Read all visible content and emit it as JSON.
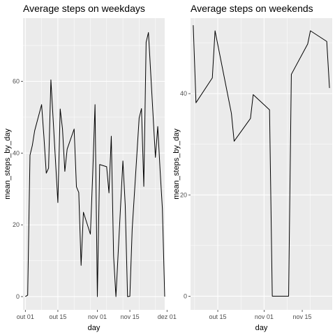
{
  "chart_data": [
    {
      "type": "line",
      "title": "Average steps on weekdays",
      "xlabel": "day",
      "ylabel": "mean_steps_by_day",
      "xlim": [
        "2012-09-30",
        "2012-11-30"
      ],
      "ylim": [
        -3.7,
        77.6
      ],
      "x_ticks": [
        {
          "value": "2012-10-01",
          "label": "out 01"
        },
        {
          "value": "2012-10-15",
          "label": "out 15"
        },
        {
          "value": "2012-11-01",
          "label": "nov 01"
        },
        {
          "value": "2012-11-15",
          "label": "nov 15"
        },
        {
          "value": "2012-12-01",
          "label": "dez 01"
        }
      ],
      "y_ticks": [
        0,
        20,
        40,
        60
      ],
      "grid": true,
      "x": [
        "2012-10-01",
        "2012-10-02",
        "2012-10-03",
        "2012-10-04",
        "2012-10-05",
        "2012-10-08",
        "2012-10-09",
        "2012-10-10",
        "2012-10-11",
        "2012-10-12",
        "2012-10-15",
        "2012-10-16",
        "2012-10-17",
        "2012-10-18",
        "2012-10-19",
        "2012-10-22",
        "2012-10-23",
        "2012-10-24",
        "2012-10-25",
        "2012-10-26",
        "2012-10-29",
        "2012-10-30",
        "2012-10-31",
        "2012-11-01",
        "2012-11-02",
        "2012-11-05",
        "2012-11-06",
        "2012-11-07",
        "2012-11-08",
        "2012-11-09",
        "2012-11-12",
        "2012-11-13",
        "2012-11-14",
        "2012-11-15",
        "2012-11-16",
        "2012-11-19",
        "2012-11-20",
        "2012-11-21",
        "2012-11-22",
        "2012-11-23",
        "2012-11-26",
        "2012-11-27",
        "2012-11-28",
        "2012-11-29",
        "2012-11-30"
      ],
      "series": [
        {
          "values": [
            0,
            0.4,
            39.4,
            42.1,
            46.2,
            53.5,
            44.5,
            34.4,
            35.8,
            60.4,
            26.2,
            52.3,
            46.7,
            34.9,
            41.1,
            46.7,
            30.6,
            29.0,
            8.7,
            23.5,
            17.4,
            34.1,
            53.5,
            0,
            36.8,
            36.2,
            28.9,
            44.7,
            11.2,
            0,
            37.8,
            25.5,
            0,
            0.1,
            18.8,
            49.8,
            52.4,
            30.7,
            70.9,
            73.6,
            38.8,
            47.4,
            35.4,
            24.5,
            0
          ]
        }
      ]
    },
    {
      "type": "line",
      "title": "Average steps on weekends",
      "xlabel": "day",
      "ylabel": "mean_steps_by_day",
      "xlim": [
        "2012-10-05",
        "2012-11-26"
      ],
      "ylim": [
        -2.7,
        54.9
      ],
      "x_ticks": [
        {
          "value": "2012-10-15",
          "label": "out 15"
        },
        {
          "value": "2012-11-01",
          "label": "nov 01"
        },
        {
          "value": "2012-11-15",
          "label": "nov 15"
        }
      ],
      "y_ticks": [
        0,
        20,
        40
      ],
      "grid": true,
      "x": [
        "2012-10-06",
        "2012-10-07",
        "2012-10-13",
        "2012-10-14",
        "2012-10-20",
        "2012-10-21",
        "2012-10-27",
        "2012-10-28",
        "2012-11-03",
        "2012-11-04",
        "2012-11-10",
        "2012-11-11",
        "2012-11-17",
        "2012-11-18",
        "2012-11-24",
        "2012-11-25"
      ],
      "series": [
        {
          "values": [
            53.5,
            38.2,
            43.1,
            52.4,
            36.1,
            30.6,
            35.1,
            39.8,
            36.8,
            0,
            0,
            43.8,
            49.8,
            52.4,
            50.3,
            41.1
          ]
        }
      ]
    }
  ]
}
